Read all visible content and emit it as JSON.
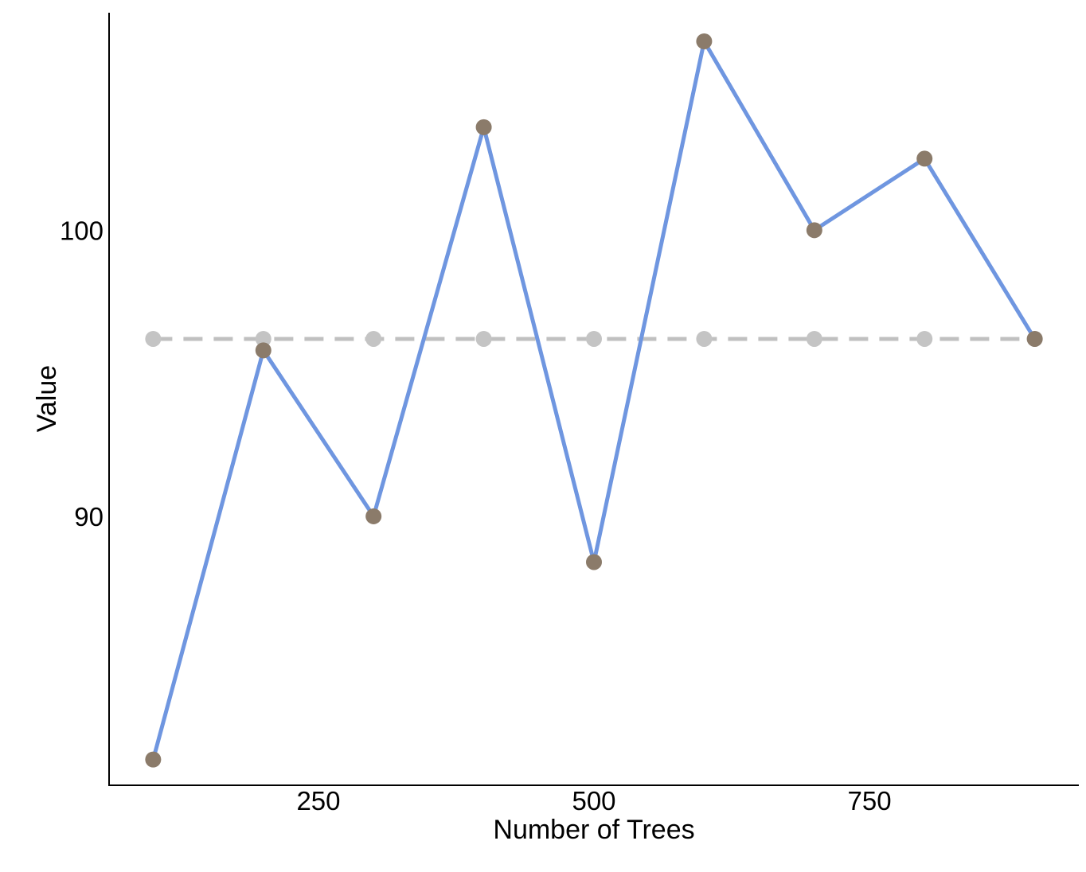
{
  "chart_data": {
    "type": "line",
    "xlabel": "Number of Trees",
    "ylabel": "Value",
    "x": [
      100,
      200,
      300,
      400,
      500,
      600,
      700,
      800,
      900
    ],
    "xlim": [
      60,
      940
    ],
    "ylim": [
      80.6,
      107.6
    ],
    "xticks": [
      250,
      500,
      750
    ],
    "yticks": [
      90,
      100
    ],
    "grid": false,
    "legend": "none",
    "series": [
      {
        "values": [
          81.5,
          95.8,
          90.0,
          103.6,
          88.4,
          106.6,
          100.0,
          102.5,
          96.2
        ],
        "line_color": "#6f96e0",
        "point_color": "#8b7b6a",
        "line_style": "solid"
      },
      {
        "values": [
          96.2,
          96.2,
          96.2,
          96.2,
          96.2,
          96.2,
          96.2,
          96.2,
          96.2
        ],
        "line_color": "#c0c0c0",
        "point_color": "#c4c4c4",
        "line_style": "dashed"
      }
    ]
  }
}
